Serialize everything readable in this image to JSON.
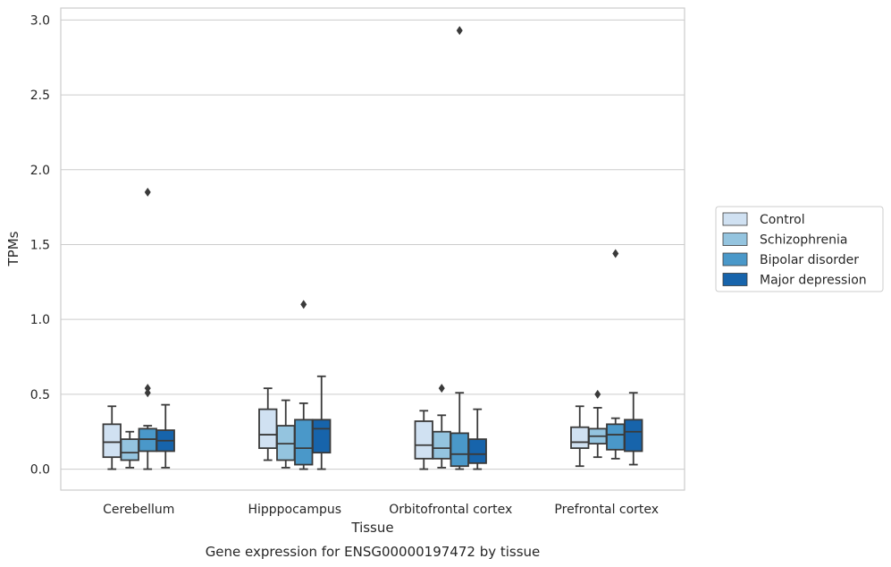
{
  "chart_data": {
    "type": "box",
    "title": "",
    "xlabel": "Tissue",
    "ylabel": "TPMs",
    "caption": "Gene expression for ENSG00000197472 by tissue",
    "ylim": [
      -0.14,
      3.08
    ],
    "yticks": [
      "0.0",
      "0.5",
      "1.0",
      "1.5",
      "2.0",
      "2.5",
      "3.0"
    ],
    "grid": "horizontal",
    "legend_position": "right",
    "categories": [
      "Cerebellum",
      "Hipppocampus",
      "Orbitofrontal cortex",
      "Prefrontal cortex"
    ],
    "series": [
      {
        "name": "Control",
        "color": "#d0e1f2",
        "boxes": [
          {
            "whislo": 0.0,
            "q1": 0.08,
            "med": 0.18,
            "q3": 0.3,
            "whishi": 0.42,
            "fliers": []
          },
          {
            "whislo": 0.06,
            "q1": 0.14,
            "med": 0.23,
            "q3": 0.4,
            "whishi": 0.54,
            "fliers": []
          },
          {
            "whislo": 0.0,
            "q1": 0.07,
            "med": 0.16,
            "q3": 0.32,
            "whishi": 0.39,
            "fliers": []
          },
          {
            "whislo": 0.02,
            "q1": 0.14,
            "med": 0.18,
            "q3": 0.28,
            "whishi": 0.42,
            "fliers": []
          }
        ]
      },
      {
        "name": "Schizophrenia",
        "color": "#94c4df",
        "boxes": [
          {
            "whislo": 0.01,
            "q1": 0.06,
            "med": 0.11,
            "q3": 0.2,
            "whishi": 0.25,
            "fliers": []
          },
          {
            "whislo": 0.01,
            "q1": 0.06,
            "med": 0.17,
            "q3": 0.29,
            "whishi": 0.46,
            "fliers": []
          },
          {
            "whislo": 0.01,
            "q1": 0.07,
            "med": 0.14,
            "q3": 0.25,
            "whishi": 0.36,
            "fliers": [
              0.54
            ]
          },
          {
            "whislo": 0.08,
            "q1": 0.17,
            "med": 0.22,
            "q3": 0.27,
            "whishi": 0.41,
            "fliers": [
              0.5
            ]
          }
        ]
      },
      {
        "name": "Bipolar disorder",
        "color": "#4a98c9",
        "boxes": [
          {
            "whislo": 0.0,
            "q1": 0.12,
            "med": 0.2,
            "q3": 0.27,
            "whishi": 0.29,
            "fliers": [
              1.85,
              0.54,
              0.51
            ]
          },
          {
            "whislo": 0.0,
            "q1": 0.03,
            "med": 0.14,
            "q3": 0.33,
            "whishi": 0.44,
            "fliers": [
              1.1
            ]
          },
          {
            "whislo": 0.0,
            "q1": 0.02,
            "med": 0.1,
            "q3": 0.24,
            "whishi": 0.51,
            "fliers": [
              2.93
            ]
          },
          {
            "whislo": 0.07,
            "q1": 0.13,
            "med": 0.23,
            "q3": 0.3,
            "whishi": 0.34,
            "fliers": [
              1.44
            ]
          }
        ]
      },
      {
        "name": "Major depression",
        "color": "#1764ab",
        "boxes": [
          {
            "whislo": 0.01,
            "q1": 0.12,
            "med": 0.19,
            "q3": 0.26,
            "whishi": 0.43,
            "fliers": []
          },
          {
            "whislo": 0.0,
            "q1": 0.11,
            "med": 0.27,
            "q3": 0.33,
            "whishi": 0.62,
            "fliers": []
          },
          {
            "whislo": 0.0,
            "q1": 0.04,
            "med": 0.1,
            "q3": 0.2,
            "whishi": 0.4,
            "fliers": []
          },
          {
            "whislo": 0.03,
            "q1": 0.12,
            "med": 0.25,
            "q3": 0.33,
            "whishi": 0.51,
            "fliers": []
          }
        ]
      }
    ]
  }
}
